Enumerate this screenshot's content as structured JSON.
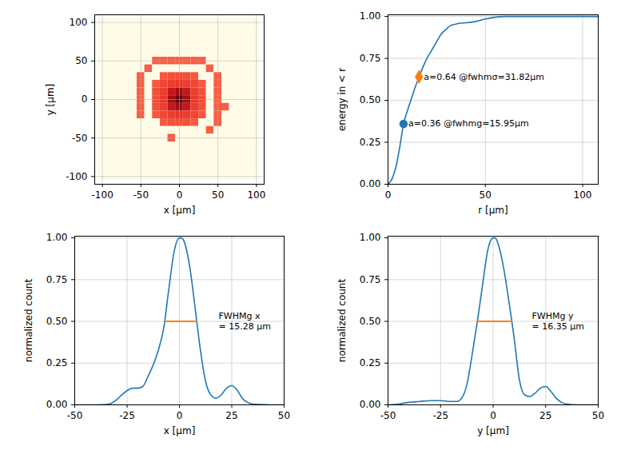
{
  "chart_data": [
    {
      "type": "heatmap",
      "x_label": "x [μm]",
      "y_label": "y [μm]",
      "xlim": [
        -110,
        110
      ],
      "ylim": [
        -110,
        110
      ],
      "xticks": [
        -100,
        -50,
        0,
        50,
        100
      ],
      "yticks": [
        -100,
        -50,
        0,
        50,
        100
      ],
      "grid": true,
      "x_centers": [
        -100,
        -90,
        -80,
        -70,
        -60,
        -50,
        -40,
        -30,
        -20,
        -10,
        0,
        10,
        20,
        30,
        40,
        50,
        60,
        70,
        80,
        90,
        100
      ],
      "y_centers": [
        100,
        90,
        80,
        70,
        60,
        50,
        40,
        30,
        20,
        10,
        0,
        -10,
        -20,
        -30,
        -40,
        -50,
        -60,
        -70,
        -80,
        -90,
        -100
      ],
      "z": [
        [
          0,
          0,
          0,
          0,
          0,
          0,
          0,
          0,
          0,
          0,
          0,
          0,
          0,
          0,
          0,
          0,
          0,
          0,
          0,
          0,
          0
        ],
        [
          0,
          0,
          0,
          0,
          0,
          0,
          0,
          0,
          0,
          0,
          0,
          0,
          0,
          0,
          0,
          0,
          0,
          0,
          0,
          0,
          0
        ],
        [
          0,
          0,
          0,
          0,
          0,
          0,
          0,
          0,
          0,
          0,
          0,
          0,
          0,
          0,
          0,
          0,
          0,
          0,
          0,
          0,
          0
        ],
        [
          0,
          0,
          0,
          0,
          0,
          0,
          0,
          0,
          0,
          0,
          0,
          0,
          0,
          0,
          0,
          0,
          0,
          0,
          0,
          0,
          0
        ],
        [
          0,
          0,
          0,
          0,
          0,
          0,
          0,
          0,
          0,
          0,
          0,
          0,
          0,
          0,
          0,
          0,
          0,
          0,
          0,
          0,
          0
        ],
        [
          0,
          0,
          0,
          0,
          0,
          0,
          0,
          0.28,
          0.28,
          0.28,
          0.28,
          0.28,
          0.28,
          0.28,
          0,
          0,
          0,
          0,
          0,
          0,
          0
        ],
        [
          0,
          0,
          0,
          0,
          0,
          0,
          0.28,
          0,
          0,
          0,
          0,
          0,
          0,
          0,
          0.28,
          0,
          0,
          0,
          0,
          0,
          0
        ],
        [
          0,
          0,
          0,
          0,
          0,
          0.28,
          0,
          0,
          0.3,
          0.34,
          0.35,
          0.34,
          0.3,
          0,
          0,
          0.28,
          0,
          0,
          0,
          0,
          0
        ],
        [
          0,
          0,
          0,
          0,
          0,
          0.28,
          0,
          0.3,
          0.38,
          0.42,
          0.45,
          0.42,
          0.38,
          0.3,
          0,
          0.28,
          0,
          0,
          0,
          0,
          0
        ],
        [
          0,
          0,
          0,
          0,
          0,
          0.28,
          0,
          0.34,
          0.42,
          0.65,
          0.8,
          0.65,
          0.42,
          0.34,
          0,
          0.28,
          0,
          0,
          0,
          0,
          0
        ],
        [
          0,
          0,
          0,
          0,
          0,
          0.28,
          0,
          0.35,
          0.45,
          0.8,
          1,
          0.8,
          0.45,
          0.35,
          0,
          0.28,
          0,
          0,
          0,
          0,
          0
        ],
        [
          0,
          0,
          0,
          0,
          0,
          0.28,
          0,
          0.34,
          0.42,
          0.65,
          0.8,
          0.65,
          0.42,
          0.34,
          0,
          0.28,
          0.28,
          0,
          0,
          0,
          0
        ],
        [
          0,
          0,
          0,
          0,
          0,
          0.28,
          0,
          0.3,
          0.38,
          0.42,
          0.45,
          0.42,
          0.38,
          0.3,
          0,
          0.28,
          0,
          0,
          0,
          0,
          0
        ],
        [
          0,
          0,
          0,
          0,
          0,
          0,
          0,
          0,
          0.3,
          0.34,
          0.35,
          0.34,
          0.3,
          0,
          0,
          0.28,
          0,
          0,
          0,
          0,
          0
        ],
        [
          0,
          0,
          0,
          0,
          0,
          0,
          0,
          0,
          0,
          0,
          0,
          0,
          0,
          0,
          0.28,
          0,
          0,
          0,
          0,
          0,
          0
        ],
        [
          0,
          0,
          0,
          0,
          0,
          0,
          0,
          0,
          0,
          0.28,
          0,
          0,
          0,
          0,
          0,
          0,
          0,
          0,
          0,
          0,
          0
        ],
        [
          0,
          0,
          0,
          0,
          0,
          0,
          0,
          0,
          0,
          0,
          0,
          0,
          0,
          0,
          0,
          0,
          0,
          0,
          0,
          0,
          0
        ],
        [
          0,
          0,
          0,
          0,
          0,
          0,
          0,
          0,
          0,
          0,
          0,
          0,
          0,
          0,
          0,
          0,
          0,
          0,
          0,
          0,
          0
        ],
        [
          0,
          0,
          0,
          0,
          0,
          0,
          0,
          0,
          0,
          0,
          0,
          0,
          0,
          0,
          0,
          0,
          0,
          0,
          0,
          0,
          0
        ],
        [
          0,
          0,
          0,
          0,
          0,
          0,
          0,
          0,
          0,
          0,
          0,
          0,
          0,
          0,
          0,
          0,
          0,
          0,
          0,
          0,
          0
        ],
        [
          0,
          0,
          0,
          0,
          0,
          0,
          0,
          0,
          0,
          0,
          0,
          0,
          0,
          0,
          0,
          0,
          0,
          0,
          0,
          0,
          0
        ]
      ]
    },
    {
      "type": "line",
      "x_label": "r [μm]",
      "y_label": "energy in < r",
      "xlim": [
        0,
        108
      ],
      "ylim": [
        0,
        1.01
      ],
      "xticks": [
        0,
        50,
        100
      ],
      "yticks": [
        {
          "value": 0,
          "label": "0.00"
        },
        {
          "value": 0.25,
          "label": "0.25"
        },
        {
          "value": 0.5,
          "label": "0.50"
        },
        {
          "value": 0.75,
          "label": "0.75"
        },
        {
          "value": 1,
          "label": "1.00"
        }
      ],
      "grid": true,
      "color": "#1f77b4",
      "x": [
        0,
        2,
        4,
        6,
        8,
        10,
        12,
        14,
        16,
        18,
        20,
        22,
        25,
        27,
        30,
        32,
        35,
        37,
        40,
        45,
        50,
        55,
        60,
        70,
        80,
        90,
        100,
        108
      ],
      "values": [
        0,
        0.03,
        0.1,
        0.22,
        0.36,
        0.44,
        0.51,
        0.58,
        0.64,
        0.7,
        0.75,
        0.79,
        0.85,
        0.89,
        0.925,
        0.945,
        0.955,
        0.96,
        0.962,
        0.97,
        0.985,
        0.995,
        1,
        1,
        1,
        1,
        1,
        1
      ],
      "points": [
        {
          "x": 7.98,
          "y": 0.36,
          "label": "a=0.36 @fwhmg=15.95μm",
          "color": "#1f77b4",
          "marker": "circle"
        },
        {
          "x": 15.91,
          "y": 0.64,
          "label": "a=0.64 @fwhmσ=31.82μm",
          "color": "#ff7f0e",
          "marker": "diamond"
        }
      ]
    },
    {
      "type": "line",
      "x_label": "x [μm]",
      "y_label": "normalized count",
      "xlim": [
        -50,
        50
      ],
      "ylim": [
        0,
        1.01
      ],
      "xticks": [
        -50,
        -25,
        0,
        25,
        50
      ],
      "yticks": [
        {
          "value": 0,
          "label": "0.00"
        },
        {
          "value": 0.25,
          "label": "0.25"
        },
        {
          "value": 0.5,
          "label": "0.50"
        },
        {
          "value": 0.75,
          "label": "0.75"
        },
        {
          "value": 1,
          "label": "1.00"
        }
      ],
      "grid": true,
      "color": "#1f77b4",
      "x": [
        -50,
        -45,
        -40,
        -35,
        -32.5,
        -30,
        -27.5,
        -25,
        -22.5,
        -20,
        -17.5,
        -15,
        -12.5,
        -10,
        -7.5,
        -5,
        -2.5,
        0,
        1,
        2.5,
        5,
        7.5,
        10,
        12.5,
        15,
        17.5,
        20,
        22.5,
        25,
        27.5,
        30,
        32.5,
        35,
        40,
        45,
        50
      ],
      "values": [
        0,
        0,
        0,
        0.002,
        0.01,
        0.03,
        0.06,
        0.085,
        0.1,
        0.1,
        0.11,
        0.17,
        0.24,
        0.33,
        0.46,
        0.7,
        0.92,
        1,
        1,
        0.97,
        0.82,
        0.58,
        0.33,
        0.14,
        0.06,
        0.04,
        0.06,
        0.1,
        0.115,
        0.09,
        0.04,
        0.015,
        0.005,
        0.002,
        0,
        0
      ],
      "fwhm_segment": {
        "x": [
          -7.0,
          8.28
        ],
        "y": 0.5,
        "color": "#ff7f0e"
      },
      "annotation": [
        "FWHMg x",
        "= 15.28 μm"
      ]
    },
    {
      "type": "line",
      "x_label": "y [μm]",
      "y_label": "normalized count",
      "xlim": [
        -50,
        50
      ],
      "ylim": [
        0,
        1.01
      ],
      "xticks": [
        -50,
        -25,
        0,
        25,
        50
      ],
      "yticks": [
        {
          "value": 0,
          "label": "0.00"
        },
        {
          "value": 0.25,
          "label": "0.25"
        },
        {
          "value": 0.5,
          "label": "0.50"
        },
        {
          "value": 0.75,
          "label": "0.75"
        },
        {
          "value": 1,
          "label": "1.00"
        }
      ],
      "grid": true,
      "color": "#1f77b4",
      "x": [
        -50,
        -45,
        -40,
        -35,
        -30,
        -25,
        -20,
        -17.5,
        -15,
        -12.5,
        -10,
        -7.5,
        -5,
        -2.5,
        0,
        1,
        2.5,
        5,
        7.5,
        10,
        12.5,
        15,
        17.5,
        20,
        22.5,
        25,
        27.5,
        30,
        32.5,
        35,
        40,
        45,
        50
      ],
      "values": [
        0,
        0.005,
        0.015,
        0.02,
        0.025,
        0.025,
        0.02,
        0.02,
        0.04,
        0.12,
        0.3,
        0.5,
        0.72,
        0.93,
        1,
        1,
        0.96,
        0.82,
        0.62,
        0.4,
        0.15,
        0.06,
        0.05,
        0.07,
        0.1,
        0.11,
        0.08,
        0.04,
        0.015,
        0.005,
        0,
        0,
        0
      ],
      "fwhm_segment": {
        "x": [
          -7.5,
          8.85
        ],
        "y": 0.5,
        "color": "#ff7f0e"
      },
      "annotation": [
        "FWHMg y",
        "= 16.35 μm"
      ]
    }
  ]
}
